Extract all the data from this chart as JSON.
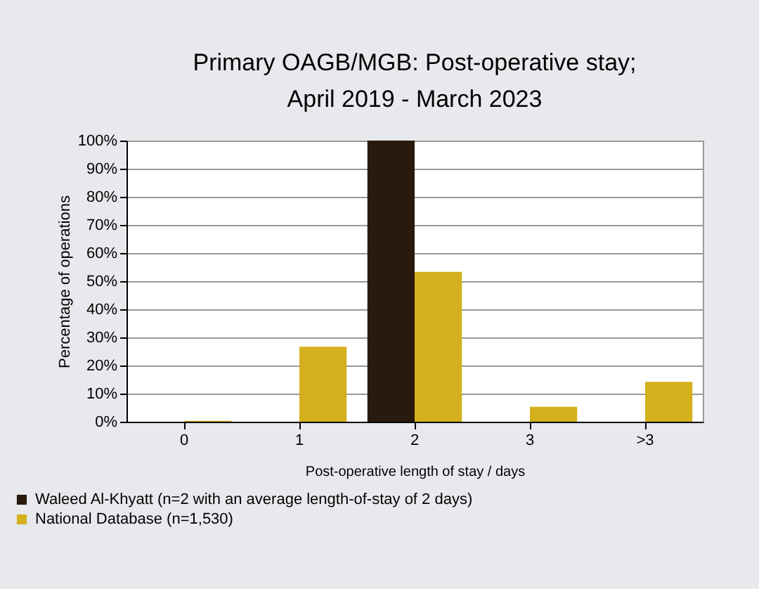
{
  "chart_data": {
    "type": "bar",
    "title": "Primary OAGB/MGB: Post-operative stay;\nApril 2019 - March 2023",
    "xlabel": "Post-operative length of stay / days",
    "ylabel": "Percentage of operations",
    "categories": [
      "0",
      "1",
      "2",
      "3",
      ">3"
    ],
    "series": [
      {
        "name": "Waleed Al-Khyatt (n=2 with an average length-of-stay of 2 days)",
        "color": "#2a1a0e",
        "values": [
          0,
          0,
          100,
          0,
          0
        ]
      },
      {
        "name": "National Database (n=1,530)",
        "color": "#d4b01e",
        "values": [
          0.3,
          26.7,
          53.3,
          5.3,
          14.2
        ]
      }
    ],
    "ylim": [
      0,
      100
    ],
    "yticks": [
      {
        "value": 0,
        "label": "0%"
      },
      {
        "value": 10,
        "label": "10%"
      },
      {
        "value": 20,
        "label": "20%"
      },
      {
        "value": 30,
        "label": "30%"
      },
      {
        "value": 40,
        "label": "40%"
      },
      {
        "value": 50,
        "label": "50%"
      },
      {
        "value": 60,
        "label": "60%"
      },
      {
        "value": 70,
        "label": "70%"
      },
      {
        "value": 80,
        "label": "80%"
      },
      {
        "value": 90,
        "label": "90%"
      },
      {
        "value": 100,
        "label": "100%"
      }
    ],
    "grid": "y",
    "legend": "bottom left"
  }
}
